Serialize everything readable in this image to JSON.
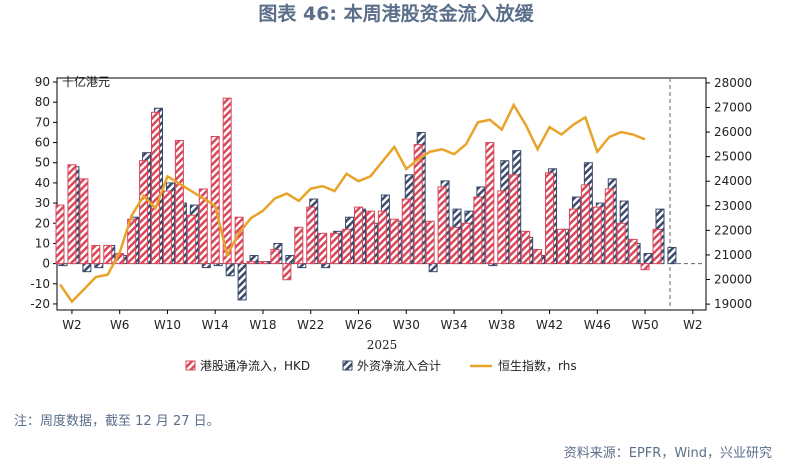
{
  "chart_data": {
    "type": "bar-line",
    "title": "图表 46: 本周港股资金流入放缓",
    "y_unit": "十亿港元",
    "x_label": "2025",
    "note": "注：周度数据，截至 12 月 27 日。",
    "source": "资料来源：EPFR，Wind，兴业研究",
    "categories": [
      null,
      "W2",
      null,
      null,
      null,
      "W6",
      null,
      null,
      null,
      "W10",
      null,
      null,
      null,
      "W14",
      null,
      null,
      null,
      "W18",
      null,
      null,
      null,
      "W22",
      null,
      null,
      null,
      "W26",
      null,
      null,
      null,
      "W30",
      null,
      null,
      null,
      "W34",
      null,
      null,
      null,
      "W38",
      null,
      null,
      null,
      "W42",
      null,
      null,
      null,
      "W46",
      null,
      null,
      null,
      "W50",
      null,
      null,
      null,
      "W2"
    ],
    "series": [
      {
        "name": "港股通净流入，HKD",
        "type": "bar",
        "color": "#d9475a",
        "values": [
          29,
          49,
          42,
          9,
          9,
          5,
          22,
          51,
          75,
          36,
          61,
          24,
          37,
          63,
          82,
          23,
          1,
          1,
          7,
          -8,
          18,
          28,
          15,
          15,
          17,
          28,
          26,
          26,
          22,
          32,
          59,
          21,
          38,
          18,
          20,
          33,
          60,
          36,
          44,
          16,
          7,
          45,
          17,
          27,
          39,
          28,
          37,
          20,
          12,
          -3,
          17,
          null,
          null,
          null
        ]
      },
      {
        "name": "外资净流入合计",
        "type": "bar",
        "color": "#3c4a6b",
        "values": [
          -1,
          48,
          -4,
          -2,
          9,
          4,
          23,
          55,
          77,
          40,
          30,
          29,
          -2,
          -1,
          -6,
          -18,
          4,
          1,
          10,
          4,
          -2,
          32,
          -2,
          16,
          23,
          27,
          20,
          34,
          21,
          44,
          65,
          -4,
          41,
          27,
          26,
          38,
          -1,
          51,
          56,
          13,
          4,
          47,
          17,
          33,
          50,
          30,
          42,
          31,
          10,
          5,
          27,
          8,
          null,
          null
        ]
      },
      {
        "name": "恒生指数，rhs",
        "type": "line",
        "axis": "y2",
        "color": "#e8a42a",
        "values": [
          19800,
          19100,
          19600,
          20100,
          20200,
          21100,
          22600,
          23400,
          22900,
          24200,
          23900,
          23600,
          23300,
          23000,
          21000,
          21900,
          22500,
          22800,
          23300,
          23500,
          23200,
          23700,
          23800,
          23600,
          24300,
          24000,
          24200,
          24800,
          25400,
          24500,
          24900,
          25200,
          25300,
          25100,
          25500,
          26400,
          26500,
          26100,
          27100,
          26300,
          25300,
          26200,
          25900,
          26300,
          26600,
          25200,
          25800,
          26000,
          25900,
          25700,
          null,
          null,
          null,
          null
        ]
      }
    ],
    "ylim": [
      -23,
      92
    ],
    "yticks": [
      -20,
      -10,
      0,
      10,
      20,
      30,
      40,
      50,
      60,
      70,
      80,
      90
    ],
    "y2lim": [
      18760,
      28200
    ],
    "y2ticks": [
      19000,
      20000,
      21000,
      22000,
      23000,
      24000,
      25000,
      26000,
      27000,
      28000
    ]
  }
}
